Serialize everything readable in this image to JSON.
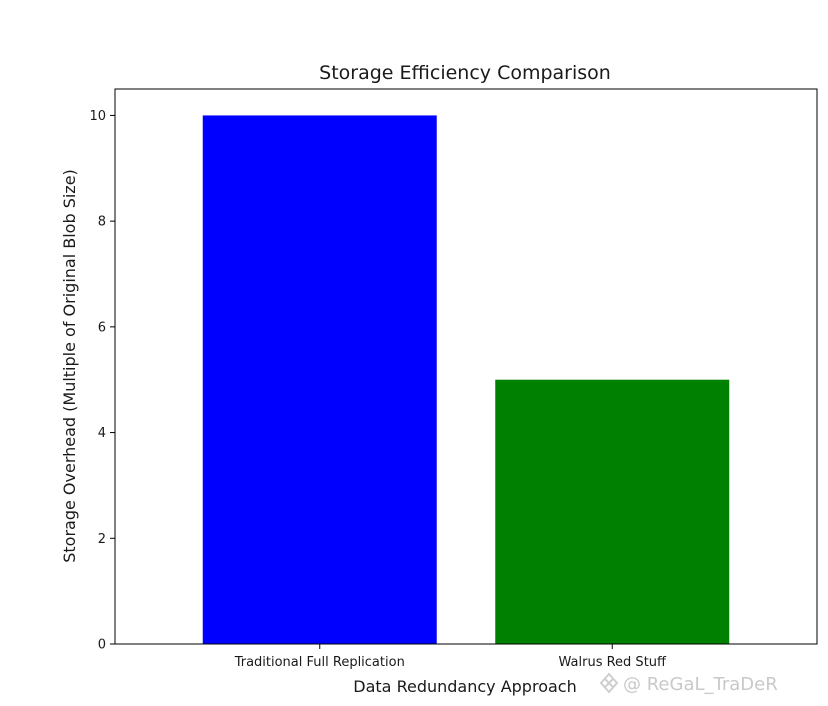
{
  "chart_data": {
    "type": "bar",
    "title": "Storage Efficiency Comparison",
    "xlabel": "Data Redundancy Approach",
    "ylabel": "Storage Overhead (Multiple of Original Blob Size)",
    "categories": [
      "Traditional Full Replication",
      "Walrus Red Stuff"
    ],
    "values": [
      10,
      5
    ],
    "colors": [
      "#0000ff",
      "#008000"
    ],
    "ylim": [
      0,
      10.5
    ],
    "yticks": [
      0,
      2,
      4,
      6,
      8,
      10
    ],
    "grid": false,
    "legend": "none"
  },
  "watermark": {
    "text": "@ ReGaL_TraDeR",
    "icon": "fluid-logo-icon"
  }
}
